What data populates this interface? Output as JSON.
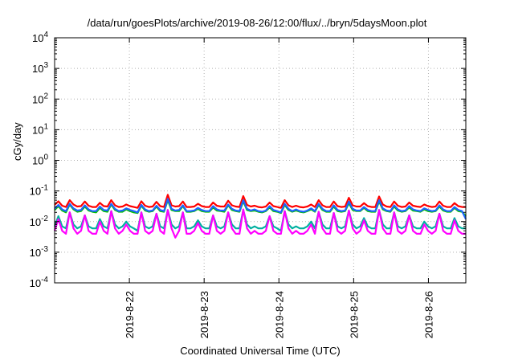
{
  "chart_data": {
    "type": "line",
    "title": "/data/run/goesPlots/archive/2019-08-26/12:00/flux/../bryn/5daysMoon.plot",
    "xlabel": "Coordinated Universal Time (UTC)",
    "ylabel": "cGy/day",
    "yscale": "log",
    "ylim": [
      0.0001,
      10000
    ],
    "xlim": [
      0,
      5.5
    ],
    "xticks": [
      {
        "x": 1,
        "label": "2019-8-22"
      },
      {
        "x": 2,
        "label": "2019-8-23"
      },
      {
        "x": 3,
        "label": "2019-8-24"
      },
      {
        "x": 4,
        "label": "2019-8-25"
      },
      {
        "x": 5,
        "label": "2019-8-26"
      }
    ],
    "yticks": [
      {
        "value": 0.0001,
        "base": "10",
        "exp": "-4"
      },
      {
        "value": 0.001,
        "base": "10",
        "exp": "-3"
      },
      {
        "value": 0.01,
        "base": "10",
        "exp": "-2"
      },
      {
        "value": 0.1,
        "base": "10",
        "exp": "-1"
      },
      {
        "value": 1,
        "base": "10",
        "exp": "0"
      },
      {
        "value": 10,
        "base": "10",
        "exp": "1"
      },
      {
        "value": 100,
        "base": "10",
        "exp": "2"
      },
      {
        "value": 1000,
        "base": "10",
        "exp": "3"
      },
      {
        "value": 10000,
        "base": "10",
        "exp": "4"
      }
    ],
    "grid": true,
    "series": [
      {
        "color": "#ff0000",
        "values": [
          0.035,
          0.046,
          0.033,
          0.03,
          0.05,
          0.036,
          0.031,
          0.032,
          0.045,
          0.033,
          0.03,
          0.03,
          0.041,
          0.032,
          0.031,
          0.05,
          0.034,
          0.03,
          0.031,
          0.036,
          0.032,
          0.03,
          0.028,
          0.046,
          0.033,
          0.03,
          0.031,
          0.044,
          0.032,
          0.03,
          0.075,
          0.034,
          0.031,
          0.032,
          0.045,
          0.03,
          0.03,
          0.031,
          0.038,
          0.032,
          0.03,
          0.03,
          0.042,
          0.033,
          0.031,
          0.031,
          0.048,
          0.034,
          0.031,
          0.03,
          0.068,
          0.035,
          0.031,
          0.033,
          0.03,
          0.029,
          0.031,
          0.042,
          0.032,
          0.03,
          0.028,
          0.05,
          0.034,
          0.03,
          0.033,
          0.03,
          0.029,
          0.031,
          0.036,
          0.03,
          0.05,
          0.034,
          0.03,
          0.03,
          0.045,
          0.032,
          0.03,
          0.031,
          0.06,
          0.034,
          0.031,
          0.031,
          0.04,
          0.032,
          0.03,
          0.03,
          0.066,
          0.036,
          0.031,
          0.03,
          0.045,
          0.033,
          0.03,
          0.031,
          0.042,
          0.033,
          0.031,
          0.03,
          0.036,
          0.032,
          0.03,
          0.031,
          0.045,
          0.033,
          0.03,
          0.03,
          0.04,
          0.032,
          0.03,
          0.03
        ]
      },
      {
        "color": "#00c000",
        "values": [
          0.024,
          0.032,
          0.023,
          0.02,
          0.036,
          0.025,
          0.021,
          0.022,
          0.031,
          0.023,
          0.021,
          0.02,
          0.028,
          0.022,
          0.021,
          0.036,
          0.024,
          0.021,
          0.021,
          0.025,
          0.022,
          0.02,
          0.019,
          0.033,
          0.023,
          0.021,
          0.022,
          0.031,
          0.022,
          0.021,
          0.05,
          0.024,
          0.022,
          0.022,
          0.032,
          0.021,
          0.021,
          0.022,
          0.026,
          0.022,
          0.021,
          0.021,
          0.029,
          0.023,
          0.022,
          0.021,
          0.034,
          0.024,
          0.022,
          0.021,
          0.046,
          0.024,
          0.022,
          0.023,
          0.021,
          0.02,
          0.022,
          0.029,
          0.022,
          0.021,
          0.019,
          0.035,
          0.024,
          0.021,
          0.023,
          0.021,
          0.02,
          0.022,
          0.025,
          0.021,
          0.035,
          0.024,
          0.021,
          0.021,
          0.031,
          0.022,
          0.021,
          0.022,
          0.04,
          0.024,
          0.022,
          0.022,
          0.028,
          0.022,
          0.021,
          0.021,
          0.045,
          0.025,
          0.022,
          0.021,
          0.031,
          0.023,
          0.021,
          0.022,
          0.029,
          0.023,
          0.022,
          0.021,
          0.025,
          0.022,
          0.021,
          0.022,
          0.031,
          0.023,
          0.021,
          0.021,
          0.028,
          0.022,
          0.021,
          0.015
        ]
      },
      {
        "color": "#1e64ff",
        "values": [
          0.026,
          0.035,
          0.025,
          0.022,
          0.038,
          0.027,
          0.023,
          0.024,
          0.034,
          0.025,
          0.022,
          0.022,
          0.031,
          0.024,
          0.023,
          0.038,
          0.026,
          0.022,
          0.023,
          0.027,
          0.024,
          0.022,
          0.02,
          0.035,
          0.025,
          0.022,
          0.023,
          0.033,
          0.024,
          0.022,
          0.055,
          0.026,
          0.023,
          0.024,
          0.034,
          0.022,
          0.022,
          0.023,
          0.028,
          0.024,
          0.022,
          0.022,
          0.032,
          0.025,
          0.023,
          0.023,
          0.036,
          0.026,
          0.023,
          0.022,
          0.05,
          0.026,
          0.023,
          0.025,
          0.022,
          0.021,
          0.023,
          0.032,
          0.024,
          0.022,
          0.02,
          0.038,
          0.026,
          0.022,
          0.025,
          0.022,
          0.021,
          0.023,
          0.027,
          0.022,
          0.038,
          0.026,
          0.022,
          0.022,
          0.034,
          0.024,
          0.022,
          0.023,
          0.045,
          0.026,
          0.023,
          0.023,
          0.03,
          0.024,
          0.022,
          0.022,
          0.05,
          0.027,
          0.023,
          0.022,
          0.034,
          0.025,
          0.022,
          0.023,
          0.032,
          0.025,
          0.023,
          0.022,
          0.027,
          0.024,
          0.022,
          0.023,
          0.034,
          0.025,
          0.022,
          0.022,
          0.03,
          0.024,
          0.022,
          0.012
        ]
      },
      {
        "color": "#00b0a0",
        "values": [
          0.007,
          0.015,
          0.007,
          0.006,
          0.02,
          0.008,
          0.006,
          0.007,
          0.016,
          0.007,
          0.006,
          0.006,
          0.012,
          0.007,
          0.006,
          0.022,
          0.008,
          0.006,
          0.007,
          0.01,
          0.007,
          0.006,
          0.005,
          0.02,
          0.007,
          0.006,
          0.007,
          0.018,
          0.007,
          0.006,
          0.024,
          0.008,
          0.006,
          0.007,
          0.02,
          0.006,
          0.006,
          0.007,
          0.011,
          0.007,
          0.006,
          0.006,
          0.016,
          0.007,
          0.006,
          0.007,
          0.02,
          0.008,
          0.006,
          0.006,
          0.024,
          0.008,
          0.006,
          0.007,
          0.006,
          0.006,
          0.007,
          0.015,
          0.007,
          0.006,
          0.005,
          0.022,
          0.008,
          0.006,
          0.007,
          0.006,
          0.006,
          0.007,
          0.01,
          0.006,
          0.021,
          0.008,
          0.006,
          0.006,
          0.019,
          0.007,
          0.006,
          0.007,
          0.023,
          0.008,
          0.006,
          0.007,
          0.013,
          0.007,
          0.006,
          0.006,
          0.024,
          0.008,
          0.006,
          0.006,
          0.02,
          0.007,
          0.006,
          0.007,
          0.016,
          0.007,
          0.006,
          0.006,
          0.01,
          0.007,
          0.006,
          0.007,
          0.018,
          0.007,
          0.006,
          0.006,
          0.013,
          0.007,
          0.006,
          0.006
        ]
      },
      {
        "color": "#ff00ff",
        "values": [
          0.005,
          0.012,
          0.005,
          0.004,
          0.02,
          0.006,
          0.004,
          0.005,
          0.016,
          0.005,
          0.004,
          0.004,
          0.01,
          0.005,
          0.004,
          0.022,
          0.006,
          0.004,
          0.005,
          0.008,
          0.005,
          0.004,
          0.004,
          0.02,
          0.005,
          0.004,
          0.005,
          0.018,
          0.005,
          0.004,
          0.024,
          0.006,
          0.003,
          0.005,
          0.02,
          0.004,
          0.004,
          0.005,
          0.009,
          0.005,
          0.004,
          0.004,
          0.016,
          0.005,
          0.004,
          0.005,
          0.02,
          0.006,
          0.004,
          0.004,
          0.025,
          0.006,
          0.004,
          0.005,
          0.004,
          0.004,
          0.005,
          0.015,
          0.005,
          0.004,
          0.004,
          0.022,
          0.006,
          0.004,
          0.005,
          0.004,
          0.004,
          0.005,
          0.008,
          0.004,
          0.021,
          0.006,
          0.004,
          0.004,
          0.019,
          0.005,
          0.004,
          0.005,
          0.023,
          0.006,
          0.004,
          0.005,
          0.011,
          0.005,
          0.004,
          0.004,
          0.024,
          0.006,
          0.004,
          0.004,
          0.02,
          0.005,
          0.004,
          0.005,
          0.016,
          0.005,
          0.004,
          0.004,
          0.008,
          0.005,
          0.004,
          0.005,
          0.018,
          0.005,
          0.004,
          0.004,
          0.011,
          0.005,
          0.004,
          0.004
        ]
      }
    ]
  }
}
